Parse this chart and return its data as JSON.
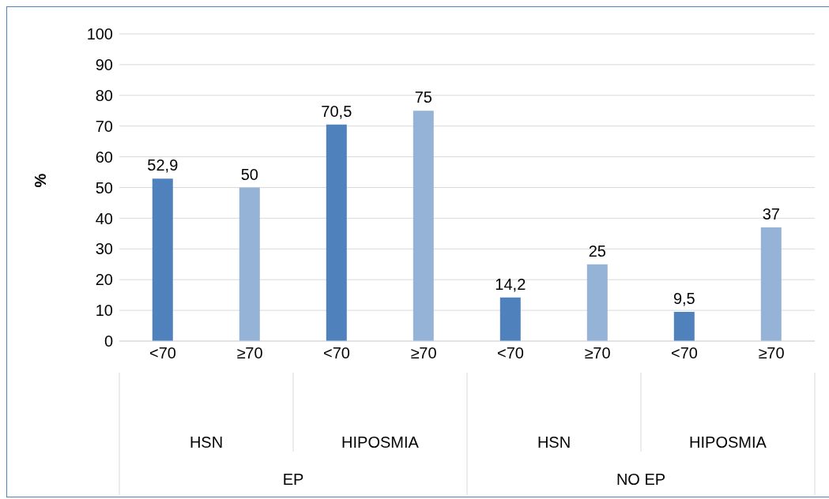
{
  "chart_data": {
    "type": "bar",
    "ylabel": "%",
    "categories": [
      "<70",
      "≥70",
      "<70",
      "≥70",
      "<70",
      "≥70",
      "<70",
      "≥70"
    ],
    "values": [
      52.9,
      50,
      70.5,
      75,
      14.2,
      25,
      9.5,
      37
    ],
    "colors": [
      "#4f81bd",
      "#95b3d7",
      "#4f81bd",
      "#95b3d7",
      "#4f81bd",
      "#95b3d7",
      "#4f81bd",
      "#95b3d7"
    ],
    "value_labels": [
      "52,9",
      "50",
      "70,5",
      "75",
      "14,2",
      "25",
      "9,5",
      "37"
    ],
    "annotations": [
      "HSN",
      "HIPOSMIA",
      "HSN",
      "HIPOSMIA",
      "EP",
      "NO EP"
    ],
    "ylim": [
      0,
      100
    ],
    "yticks": [
      0,
      10,
      20,
      30,
      40,
      50,
      60,
      70,
      80,
      90,
      100
    ],
    "grid": "y",
    "legend": false
  }
}
